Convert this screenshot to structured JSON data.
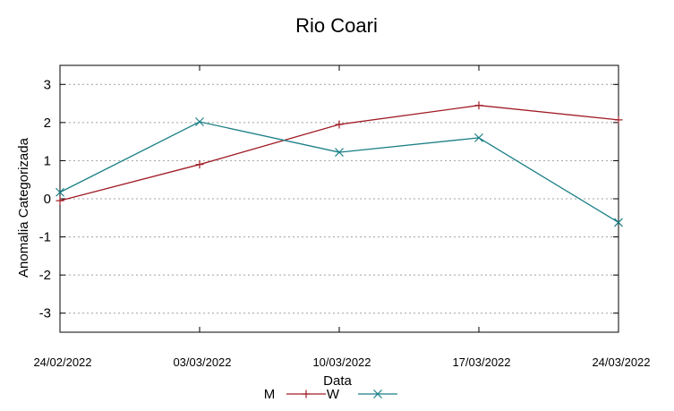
{
  "chart_data": {
    "type": "line",
    "title": "Rio Coari",
    "xlabel": "Data",
    "ylabel": "Anomalia Categorizada",
    "categories": [
      "24/02/2022",
      "03/03/2022",
      "10/03/2022",
      "17/03/2022",
      "24/03/2022"
    ],
    "ylim": [
      -3.5,
      3.5
    ],
    "yticks": [
      -3,
      -2,
      -1,
      0,
      1,
      2,
      3
    ],
    "grid": true,
    "legend_position": "bottom-center",
    "series": [
      {
        "name": "M",
        "marker": "+",
        "color": "#a01d26",
        "values": [
          -0.05,
          0.9,
          1.95,
          2.45,
          2.07
        ]
      },
      {
        "name": "W",
        "marker": "x",
        "color": "#1a7f86",
        "values": [
          0.17,
          2.02,
          1.22,
          1.6,
          -0.62
        ]
      }
    ]
  }
}
